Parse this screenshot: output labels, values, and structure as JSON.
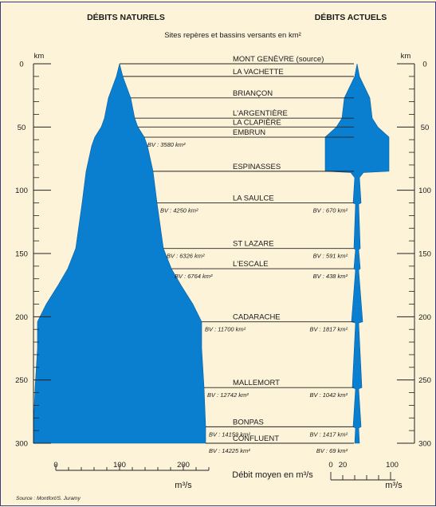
{
  "header": {
    "left_title": "DÉBITS NATURELS",
    "right_title": "DÉBITS ACTUELS",
    "subtitle": "Sites repères et bassins versants en km²"
  },
  "source": "Source : Montfort/S. Juramy",
  "colors": {
    "background": "#fdf3d9",
    "border": "#3b3b7a",
    "fill": "#0a7fd0",
    "line": "#222222"
  },
  "chart_data": {
    "type": "area",
    "y_axis": {
      "label": "km",
      "range": [
        0,
        300
      ],
      "ticks": [
        0,
        50,
        100,
        150,
        200,
        250,
        300
      ],
      "inverted": true
    },
    "x_axis_left": {
      "label": "m³/s",
      "ticks": [
        0,
        100,
        200
      ],
      "range": [
        0,
        200
      ]
    },
    "x_axis_right": {
      "label": "m³/s",
      "tick_labels": [
        "0",
        "20",
        "100"
      ]
    },
    "x_axis_title": "Débit moyen en m³/s",
    "sites": [
      {
        "name": "MONT GENÈVRE (source)",
        "km": 0,
        "bv_nat": "",
        "bv_act": ""
      },
      {
        "name": "LA VACHETTE",
        "km": 10,
        "bv_nat": "",
        "bv_act": ""
      },
      {
        "name": "BRIANÇON",
        "km": 27,
        "bv_nat": "",
        "bv_act": ""
      },
      {
        "name": "L'ARGENTIÈRE",
        "km": 43,
        "bv_nat": "",
        "bv_act": ""
      },
      {
        "name": "LA CLAPIÈRE",
        "km": 50,
        "bv_nat": "",
        "bv_act": ""
      },
      {
        "name": "EMBRUN",
        "km": 58,
        "bv_nat": "BV : 3580 km²",
        "bv_act": ""
      },
      {
        "name": "ESPINASSES",
        "km": 85,
        "bv_nat": "",
        "bv_act": ""
      },
      {
        "name": "LA SAULCE",
        "km": 110,
        "bv_nat": "BV : 4250 km²",
        "bv_act": "BV : 670 km²"
      },
      {
        "name": "ST LAZARE",
        "km": 146,
        "bv_nat": "BV : 6326 km²",
        "bv_act": "BV : 591 km²"
      },
      {
        "name": "L'ESCALE",
        "km": 162,
        "bv_nat": "BV : 6764 km²",
        "bv_act": "BV : 438 km²"
      },
      {
        "name": "CADARACHE",
        "km": 204,
        "bv_nat": "BV : 11700 km²",
        "bv_act": "BV : 1817 km²"
      },
      {
        "name": "MALLEMORT",
        "km": 256,
        "bv_nat": "BV : 12742 km²",
        "bv_act": "BV : 1042 km²"
      },
      {
        "name": "BONPAS",
        "km": 287,
        "bv_nat": "BV : 14159 km²",
        "bv_act": "BV : 1417 km²"
      },
      {
        "name": "CONFLUENT",
        "km": 300,
        "bv_nat": "BV : 14225 km²",
        "bv_act": "BV : 69 km²"
      }
    ],
    "series": [
      {
        "name": "DÉBITS NATURELS",
        "km": [
          0,
          10,
          27,
          43,
          50,
          58,
          65,
          85,
          110,
          146,
          162,
          175,
          190,
          204,
          225,
          256,
          287,
          300
        ],
        "half_flow": [
          0,
          4,
          14,
          19,
          23,
          31,
          35,
          42,
          47,
          55,
          65,
          77,
          92,
          103,
          103,
          106,
          108,
          108
        ]
      },
      {
        "name": "DÉBITS ACTUELS",
        "profile": [
          {
            "km": 0,
            "half": 0
          },
          {
            "km": 10,
            "half": 3
          },
          {
            "km": 27,
            "half": 16
          },
          {
            "km": 43,
            "half": 19
          },
          {
            "km": 50,
            "half": 26
          },
          {
            "km": 58,
            "half": 40
          },
          {
            "km": 85,
            "half": 40
          },
          {
            "km": 86,
            "half": 8
          },
          {
            "km": 90,
            "half": 3
          },
          {
            "km": 110,
            "half": 5
          },
          {
            "km": 111,
            "half": 2
          },
          {
            "km": 146,
            "half": 4
          },
          {
            "km": 147,
            "half": 2
          },
          {
            "km": 162,
            "half": 4
          },
          {
            "km": 163,
            "half": 2
          },
          {
            "km": 204,
            "half": 7
          },
          {
            "km": 205,
            "half": 2
          },
          {
            "km": 256,
            "half": 6
          },
          {
            "km": 257,
            "half": 2
          },
          {
            "km": 287,
            "half": 5
          },
          {
            "km": 288,
            "half": 2
          },
          {
            "km": 300,
            "half": 3
          }
        ]
      }
    ]
  }
}
